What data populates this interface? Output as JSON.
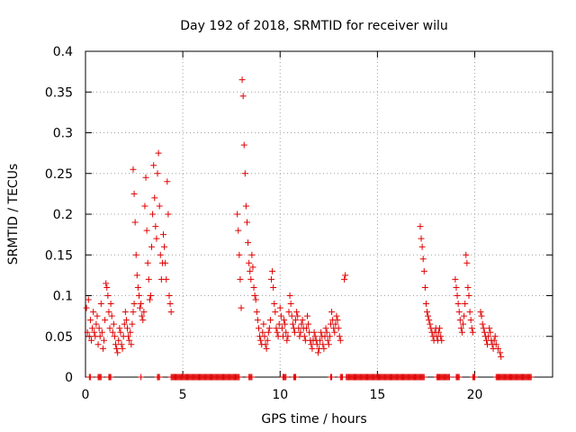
{
  "chart_data": {
    "type": "scatter",
    "title": "Day 192 of 2018, SRMTID for receiver wilu",
    "xlabel": "GPS time / hours",
    "ylabel": "SRMTID / TECUs",
    "xlim": [
      0,
      24
    ],
    "ylim": [
      0,
      0.4
    ],
    "x_ticks": [
      0,
      5,
      10,
      15,
      20
    ],
    "x_tick_labels": [
      "0",
      "5",
      "10",
      "15",
      "20"
    ],
    "y_ticks": [
      0,
      0.05,
      0.1,
      0.15,
      0.2,
      0.25,
      0.3,
      0.35,
      0.4
    ],
    "y_tick_labels": [
      "0",
      "0.05",
      "0.1",
      "0.15",
      "0.2",
      "0.25",
      "0.3",
      "0.35",
      "0.4"
    ],
    "grid": true,
    "marker": "plus",
    "color": "#e00000",
    "series": [
      {
        "name": "SRMTID",
        "points": [
          [
            0.05,
            0.085
          ],
          [
            0.1,
            0.055
          ],
          [
            0.15,
            0.095
          ],
          [
            0.2,
            0.05
          ],
          [
            0.25,
            0.07
          ],
          [
            0.3,
            0.045
          ],
          [
            0.35,
            0.06
          ],
          [
            0.4,
            0.08
          ],
          [
            0.45,
            0.055
          ],
          [
            0.5,
            0.05
          ],
          [
            0.55,
            0.065
          ],
          [
            0.6,
            0.075
          ],
          [
            0.65,
            0.04
          ],
          [
            0.7,
            0.06
          ],
          [
            0.75,
            0.05
          ],
          [
            0.8,
            0.09
          ],
          [
            0.85,
            0.055
          ],
          [
            0.9,
            0.035
          ],
          [
            0.95,
            0.045
          ],
          [
            1.0,
            0.07
          ],
          [
            1.05,
            0.115
          ],
          [
            1.1,
            0.11
          ],
          [
            1.15,
            0.1
          ],
          [
            1.2,
            0.08
          ],
          [
            1.25,
            0.06
          ],
          [
            1.3,
            0.09
          ],
          [
            1.35,
            0.075
          ],
          [
            1.4,
            0.055
          ],
          [
            1.45,
            0.065
          ],
          [
            1.5,
            0.05
          ],
          [
            1.55,
            0.04
          ],
          [
            1.6,
            0.035
          ],
          [
            1.65,
            0.03
          ],
          [
            1.7,
            0.045
          ],
          [
            1.75,
            0.06
          ],
          [
            1.8,
            0.055
          ],
          [
            1.85,
            0.04
          ],
          [
            1.9,
            0.035
          ],
          [
            1.95,
            0.05
          ],
          [
            2.0,
            0.065
          ],
          [
            2.05,
            0.08
          ],
          [
            2.1,
            0.07
          ],
          [
            2.15,
            0.06
          ],
          [
            2.2,
            0.05
          ],
          [
            2.25,
            0.045
          ],
          [
            2.3,
            0.055
          ],
          [
            2.35,
            0.04
          ],
          [
            2.4,
            0.065
          ],
          [
            2.45,
            0.08
          ],
          [
            2.5,
            0.09
          ],
          [
            2.45,
            0.255
          ],
          [
            2.5,
            0.225
          ],
          [
            2.55,
            0.19
          ],
          [
            2.6,
            0.15
          ],
          [
            2.65,
            0.125
          ],
          [
            2.7,
            0.11
          ],
          [
            2.75,
            0.1
          ],
          [
            2.8,
            0.085
          ],
          [
            2.85,
            0.09
          ],
          [
            2.9,
            0.075
          ],
          [
            2.95,
            0.07
          ],
          [
            3.0,
            0.08
          ],
          [
            3.05,
            0.21
          ],
          [
            3.1,
            0.245
          ],
          [
            3.15,
            0.18
          ],
          [
            3.2,
            0.14
          ],
          [
            3.25,
            0.12
          ],
          [
            3.3,
            0.095
          ],
          [
            3.35,
            0.1
          ],
          [
            3.4,
            0.16
          ],
          [
            3.45,
            0.2
          ],
          [
            3.5,
            0.26
          ],
          [
            3.55,
            0.22
          ],
          [
            3.6,
            0.185
          ],
          [
            3.65,
            0.17
          ],
          [
            3.7,
            0.25
          ],
          [
            3.75,
            0.275
          ],
          [
            3.8,
            0.21
          ],
          [
            3.85,
            0.15
          ],
          [
            3.9,
            0.12
          ],
          [
            3.95,
            0.14
          ],
          [
            4.0,
            0.175
          ],
          [
            4.05,
            0.16
          ],
          [
            4.1,
            0.14
          ],
          [
            4.15,
            0.12
          ],
          [
            4.2,
            0.24
          ],
          [
            4.25,
            0.2
          ],
          [
            4.3,
            0.1
          ],
          [
            4.35,
            0.09
          ],
          [
            4.4,
            0.08
          ],
          [
            7.8,
            0.2
          ],
          [
            7.85,
            0.18
          ],
          [
            7.9,
            0.15
          ],
          [
            7.95,
            0.12
          ],
          [
            8.0,
            0.085
          ],
          [
            8.05,
            0.365
          ],
          [
            8.1,
            0.345
          ],
          [
            8.15,
            0.285
          ],
          [
            8.2,
            0.25
          ],
          [
            8.25,
            0.21
          ],
          [
            8.3,
            0.19
          ],
          [
            8.35,
            0.165
          ],
          [
            8.4,
            0.14
          ],
          [
            8.45,
            0.13
          ],
          [
            8.5,
            0.12
          ],
          [
            8.55,
            0.15
          ],
          [
            8.6,
            0.135
          ],
          [
            8.65,
            0.11
          ],
          [
            8.7,
            0.1
          ],
          [
            8.75,
            0.095
          ],
          [
            8.8,
            0.08
          ],
          [
            8.85,
            0.07
          ],
          [
            8.9,
            0.06
          ],
          [
            8.95,
            0.05
          ],
          [
            9.0,
            0.045
          ],
          [
            9.05,
            0.04
          ],
          [
            9.1,
            0.055
          ],
          [
            9.15,
            0.065
          ],
          [
            9.2,
            0.05
          ],
          [
            9.25,
            0.04
          ],
          [
            9.3,
            0.035
          ],
          [
            9.35,
            0.045
          ],
          [
            9.4,
            0.055
          ],
          [
            9.45,
            0.06
          ],
          [
            9.5,
            0.07
          ],
          [
            9.55,
            0.12
          ],
          [
            9.6,
            0.13
          ],
          [
            9.65,
            0.11
          ],
          [
            9.7,
            0.09
          ],
          [
            9.75,
            0.08
          ],
          [
            9.8,
            0.06
          ],
          [
            9.85,
            0.055
          ],
          [
            9.9,
            0.05
          ],
          [
            9.95,
            0.065
          ],
          [
            10.0,
            0.085
          ],
          [
            10.05,
            0.075
          ],
          [
            10.1,
            0.06
          ],
          [
            10.15,
            0.05
          ],
          [
            10.2,
            0.07
          ],
          [
            10.25,
            0.065
          ],
          [
            10.3,
            0.055
          ],
          [
            10.35,
            0.045
          ],
          [
            10.4,
            0.05
          ],
          [
            10.45,
            0.08
          ],
          [
            10.5,
            0.1
          ],
          [
            10.55,
            0.09
          ],
          [
            10.6,
            0.075
          ],
          [
            10.65,
            0.065
          ],
          [
            10.7,
            0.06
          ],
          [
            10.75,
            0.055
          ],
          [
            10.8,
            0.07
          ],
          [
            10.85,
            0.08
          ],
          [
            10.9,
            0.075
          ],
          [
            10.95,
            0.06
          ],
          [
            11.0,
            0.05
          ],
          [
            11.05,
            0.055
          ],
          [
            11.1,
            0.065
          ],
          [
            11.15,
            0.07
          ],
          [
            11.2,
            0.06
          ],
          [
            11.25,
            0.05
          ],
          [
            11.3,
            0.045
          ],
          [
            11.35,
            0.06
          ],
          [
            11.4,
            0.075
          ],
          [
            11.45,
            0.065
          ],
          [
            11.5,
            0.055
          ],
          [
            11.55,
            0.045
          ],
          [
            11.6,
            0.04
          ],
          [
            11.65,
            0.035
          ],
          [
            11.7,
            0.045
          ],
          [
            11.75,
            0.055
          ],
          [
            11.8,
            0.05
          ],
          [
            11.85,
            0.045
          ],
          [
            11.9,
            0.04
          ],
          [
            11.95,
            0.03
          ],
          [
            12.0,
            0.035
          ],
          [
            12.05,
            0.045
          ],
          [
            12.1,
            0.055
          ],
          [
            12.15,
            0.05
          ],
          [
            12.2,
            0.04
          ],
          [
            12.25,
            0.035
          ],
          [
            12.3,
            0.05
          ],
          [
            12.35,
            0.06
          ],
          [
            12.4,
            0.055
          ],
          [
            12.45,
            0.045
          ],
          [
            12.5,
            0.04
          ],
          [
            12.55,
            0.05
          ],
          [
            12.6,
            0.065
          ],
          [
            12.65,
            0.08
          ],
          [
            12.7,
            0.07
          ],
          [
            12.75,
            0.06
          ],
          [
            12.8,
            0.055
          ],
          [
            12.85,
            0.065
          ],
          [
            12.9,
            0.075
          ],
          [
            12.95,
            0.07
          ],
          [
            13.0,
            0.06
          ],
          [
            13.05,
            0.05
          ],
          [
            13.1,
            0.045
          ],
          [
            13.3,
            0.12
          ],
          [
            13.35,
            0.125
          ],
          [
            17.2,
            0.185
          ],
          [
            17.25,
            0.17
          ],
          [
            17.3,
            0.16
          ],
          [
            17.35,
            0.145
          ],
          [
            17.4,
            0.13
          ],
          [
            17.45,
            0.11
          ],
          [
            17.5,
            0.09
          ],
          [
            17.55,
            0.08
          ],
          [
            17.6,
            0.075
          ],
          [
            17.65,
            0.07
          ],
          [
            17.7,
            0.065
          ],
          [
            17.75,
            0.06
          ],
          [
            17.8,
            0.055
          ],
          [
            17.85,
            0.05
          ],
          [
            17.9,
            0.045
          ],
          [
            17.95,
            0.055
          ],
          [
            18.0,
            0.06
          ],
          [
            18.05,
            0.05
          ],
          [
            18.1,
            0.045
          ],
          [
            18.15,
            0.055
          ],
          [
            18.2,
            0.06
          ],
          [
            18.25,
            0.05
          ],
          [
            18.3,
            0.045
          ],
          [
            19.0,
            0.12
          ],
          [
            19.05,
            0.11
          ],
          [
            19.1,
            0.1
          ],
          [
            19.15,
            0.09
          ],
          [
            19.2,
            0.08
          ],
          [
            19.25,
            0.07
          ],
          [
            19.3,
            0.06
          ],
          [
            19.35,
            0.055
          ],
          [
            19.4,
            0.065
          ],
          [
            19.45,
            0.075
          ],
          [
            19.5,
            0.09
          ],
          [
            19.55,
            0.15
          ],
          [
            19.6,
            0.14
          ],
          [
            19.65,
            0.11
          ],
          [
            19.7,
            0.1
          ],
          [
            19.75,
            0.08
          ],
          [
            19.8,
            0.07
          ],
          [
            19.85,
            0.06
          ],
          [
            19.9,
            0.055
          ],
          [
            20.3,
            0.08
          ],
          [
            20.35,
            0.075
          ],
          [
            20.4,
            0.065
          ],
          [
            20.45,
            0.06
          ],
          [
            20.5,
            0.055
          ],
          [
            20.55,
            0.05
          ],
          [
            20.6,
            0.045
          ],
          [
            20.65,
            0.04
          ],
          [
            20.7,
            0.05
          ],
          [
            20.75,
            0.06
          ],
          [
            20.8,
            0.055
          ],
          [
            20.85,
            0.045
          ],
          [
            20.9,
            0.04
          ],
          [
            20.95,
            0.035
          ],
          [
            21.0,
            0.045
          ],
          [
            21.05,
            0.05
          ],
          [
            21.1,
            0.04
          ],
          [
            21.2,
            0.035
          ],
          [
            21.3,
            0.03
          ],
          [
            21.35,
            0.025
          ]
        ]
      }
    ],
    "zero_runs": [
      [
        0.2,
        0.25
      ],
      [
        0.65,
        0.8
      ],
      [
        1.2,
        1.3
      ],
      [
        2.85,
        2.85
      ],
      [
        3.7,
        3.8
      ],
      [
        4.4,
        7.9
      ],
      [
        8.4,
        8.55
      ],
      [
        10.15,
        10.3
      ],
      [
        10.7,
        10.8
      ],
      [
        12.6,
        12.65
      ],
      [
        13.1,
        13.2
      ],
      [
        13.4,
        17.4
      ],
      [
        18.05,
        18.7
      ],
      [
        19.05,
        19.2
      ],
      [
        19.9,
        20.0
      ],
      [
        21.1,
        22.9
      ]
    ]
  }
}
